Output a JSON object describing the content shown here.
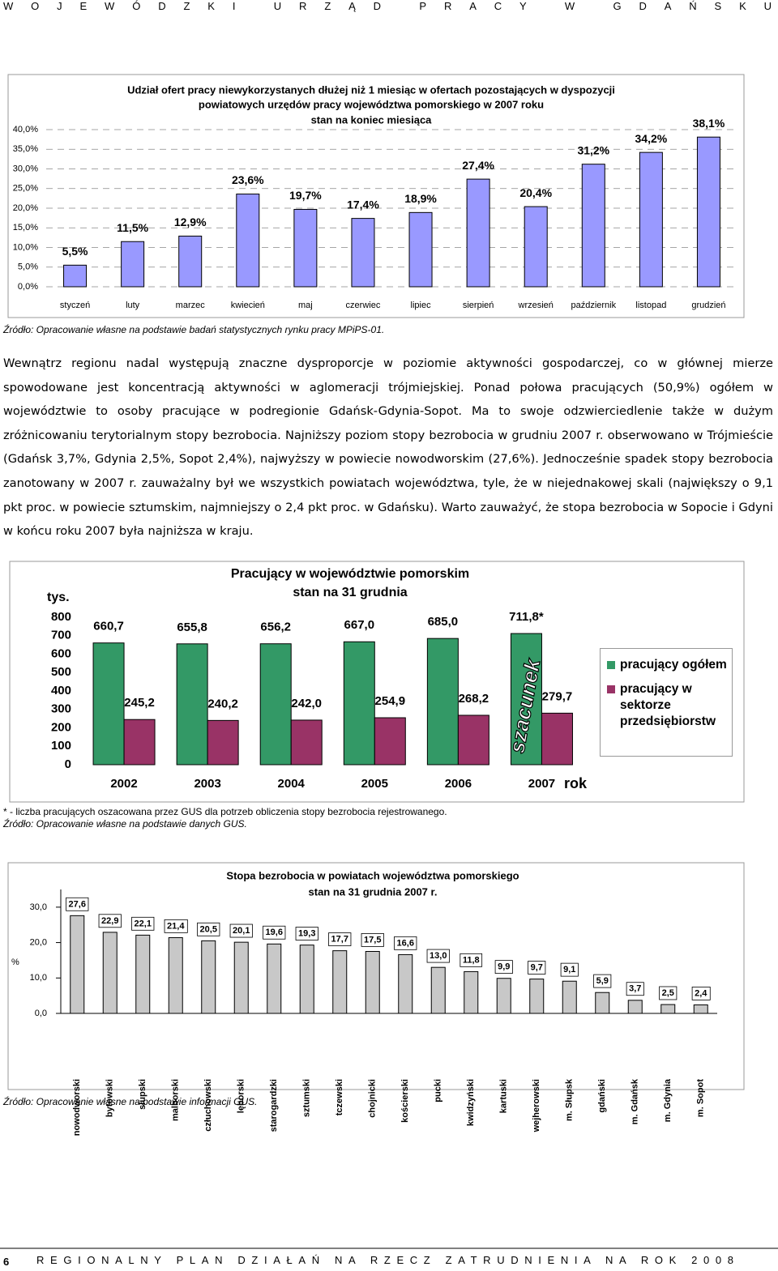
{
  "header": "WOJEWÓDZKI URZĄD PRACY W GDAŃSKU",
  "chart_data": [
    {
      "type": "bar",
      "title": [
        "Udział ofert pracy niewykorzystanych dłużej niż 1 miesiąc w ofertach pozostających w dyspozycji",
        "powiatowych urzędów pracy województwa pomorskiego w 2007 roku",
        "stan na koniec miesiąca"
      ],
      "categories": [
        "styczeń",
        "luty",
        "marzec",
        "kwiecień",
        "maj",
        "czerwiec",
        "lipiec",
        "sierpień",
        "wrzesień",
        "październik",
        "listopad",
        "grudzień"
      ],
      "values": [
        5.5,
        11.5,
        12.9,
        23.6,
        19.7,
        17.4,
        18.9,
        27.4,
        20.4,
        31.2,
        34.2,
        38.1
      ],
      "value_labels": [
        "5,5%",
        "11,5%",
        "12,9%",
        "23,6%",
        "19,7%",
        "17,4%",
        "18,9%",
        "27,4%",
        "20,4%",
        "31,2%",
        "34,2%",
        "38,1%"
      ],
      "color": "#9999ff",
      "ylim": [
        0,
        40
      ],
      "yticks": [
        {
          "value": 0,
          "label": "0,0%"
        },
        {
          "value": 5,
          "label": "5,0%"
        },
        {
          "value": 10,
          "label": "10,0%"
        },
        {
          "value": 15,
          "label": "15,0%"
        },
        {
          "value": 20,
          "label": "20,0%"
        },
        {
          "value": 25,
          "label": "25,0%"
        },
        {
          "value": 30,
          "label": "30,0%"
        },
        {
          "value": 35,
          "label": "35,0%"
        },
        {
          "value": 40,
          "label": "40,0%"
        }
      ],
      "grid": true,
      "source": "Źródło: Opracowanie własne na podstawie badań statystycznych rynku pracy MPiPS-01."
    },
    {
      "type": "bar",
      "title": [
        "Pracujący w województwie pomorskim",
        "stan na 31 grudnia"
      ],
      "ylabel": "tys.",
      "xlabel": "rok",
      "categories": [
        "2002",
        "2003",
        "2004",
        "2005",
        "2006",
        "2007"
      ],
      "series": [
        {
          "name": "pracujący ogółem",
          "color": "#339966",
          "values": [
            660.7,
            655.8,
            656.2,
            667.0,
            685.0,
            711.8
          ],
          "value_labels": [
            "660,7",
            "655,8",
            "656,2",
            "667,0",
            "685,0",
            "711,8*"
          ]
        },
        {
          "name": "pracujący w sektorze przedsiębiorstw",
          "color": "#993366",
          "values": [
            245.2,
            240.2,
            242.0,
            254.9,
            268.2,
            279.7
          ],
          "value_labels": [
            "245,2",
            "240,2",
            "242,0",
            "254,9",
            "268,2",
            "279,7"
          ]
        }
      ],
      "ylim": [
        0,
        800
      ],
      "yticks": [
        0,
        100,
        200,
        300,
        400,
        500,
        600,
        700,
        800
      ],
      "grid": false,
      "legend": "right",
      "annotation": "szacunek",
      "footnote": "* - liczba pracujących oszacowana przez GUS dla potrzeb obliczenia stopy bezrobocia rejestrowanego.",
      "source": "Źródło: Opracowanie własne na podstawie danych GUS."
    },
    {
      "type": "bar",
      "title": [
        "Stopa bezrobocia w powiatach województwa pomorskiego",
        "stan na 31 grudnia 2007 r."
      ],
      "ylabel": "%",
      "categories": [
        "nowodworski",
        "bytowski",
        "słupski",
        "malborski",
        "człuchowski",
        "lęborski",
        "starogardzki",
        "sztumski",
        "tczewski",
        "chojnicki",
        "kościerski",
        "pucki",
        "kwidzyński",
        "kartuski",
        "wejherowski",
        "m. Słupsk",
        "gdański",
        "m. Gdańsk",
        "m. Gdynia",
        "m. Sopot"
      ],
      "values": [
        27.6,
        22.9,
        22.1,
        21.4,
        20.5,
        20.1,
        19.6,
        19.3,
        17.7,
        17.5,
        16.6,
        13.0,
        11.8,
        9.9,
        9.7,
        9.1,
        5.9,
        3.7,
        2.5,
        2.4
      ],
      "value_labels": [
        "27,6",
        "22,9",
        "22,1",
        "21,4",
        "20,5",
        "20,1",
        "19,6",
        "19,3",
        "17,7",
        "17,5",
        "16,6",
        "13,0",
        "11,8",
        "9,9",
        "9,7",
        "9,1",
        "5,9",
        "3,7",
        "2,5",
        "2,4"
      ],
      "color": "#c8c8c8",
      "ylim": [
        0,
        35
      ],
      "yticks": [
        {
          "value": 0,
          "label": "0,0"
        },
        {
          "value": 10,
          "label": "10,0"
        },
        {
          "value": 20,
          "label": "20,0"
        },
        {
          "value": 30,
          "label": "30,0"
        }
      ],
      "grid": false,
      "source": "Źródło: Opracowanie własne na podstawie informacji GUS."
    }
  ],
  "paragraph": "Wewnątrz regionu nadal występują znaczne dysproporcje w poziomie aktywności gospodarczej, co w głównej mierze spowodowane jest koncentracją aktywności w aglomeracji trójmiejskiej. Ponad połowa pracujących (50,9%) ogółem w województwie to osoby pracujące w podregionie Gdańsk-Gdynia-Sopot. Ma to swoje odzwierciedlenie także w dużym zróżnicowaniu terytorialnym stopy bezrobocia. Najniższy poziom stopy bezrobocia w grudniu 2007 r. obserwowano w Trójmieście (Gdańsk 3,7%, Gdynia 2,5%, Sopot 2,4%), najwyższy w powiecie nowodworskim (27,6%). Jednocześnie spadek stopy bezrobocia zanotowany w 2007 r. zauważalny był we wszystkich powiatach województwa, tyle, że w niejednakowej skali (największy o 9,1 pkt proc. w powiecie sztumskim, najmniejszy o 2,4 pkt proc. w Gdańsku). Warto zauważyć, że stopa bezrobocia w Sopocie i Gdyni w końcu roku 2007 była najniższa w kraju.",
  "footer": {
    "page": "6",
    "text": "REGIONALNY PLAN DZIAŁAŃ NA RZECZ ZATRUDNIENIA NA ROK 2008"
  }
}
